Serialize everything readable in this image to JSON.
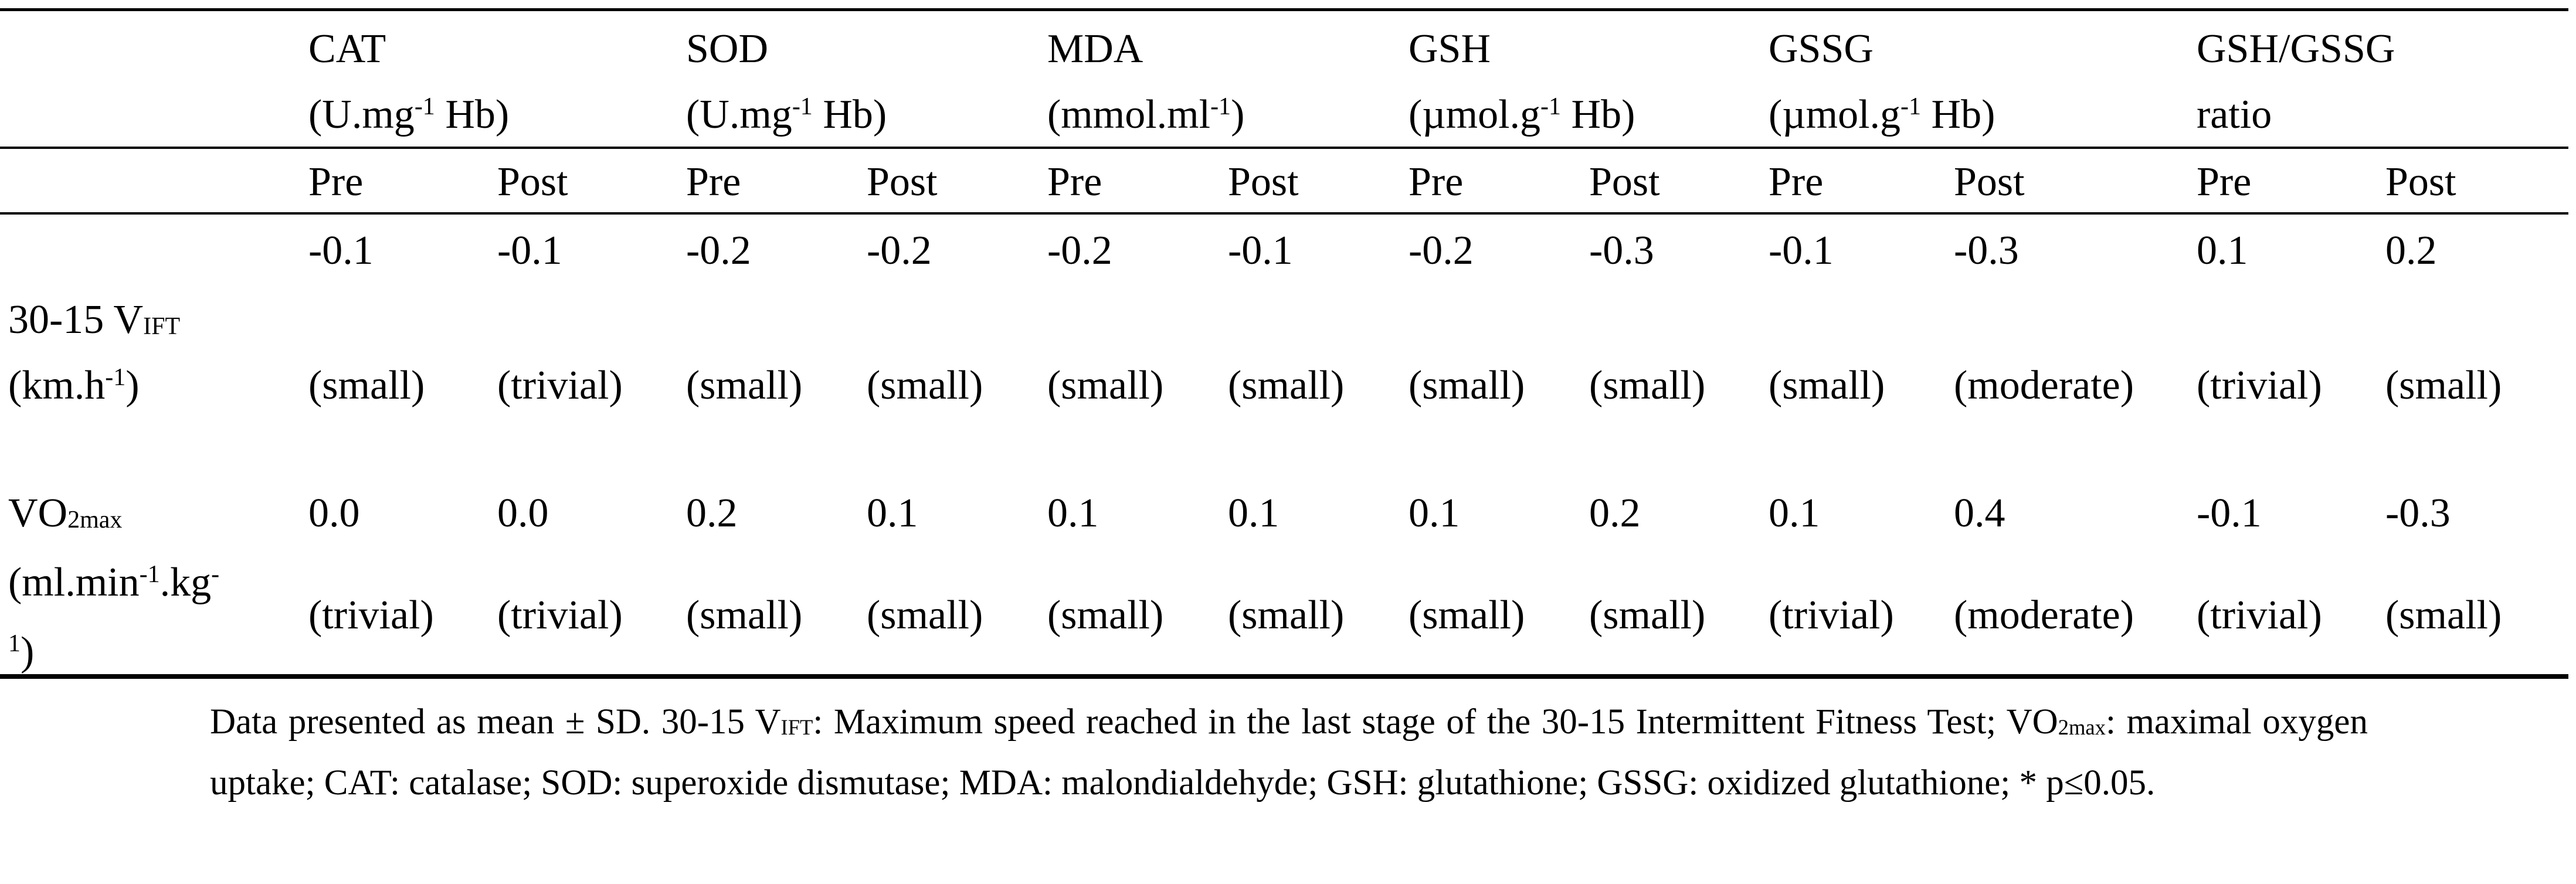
{
  "header": {
    "groups": [
      {
        "name": "CAT",
        "unit": [
          "(U.mg",
          {
            "sup": "-1"
          },
          " Hb)"
        ]
      },
      {
        "name": "SOD",
        "unit": [
          "(U.mg",
          {
            "sup": "-1"
          },
          " Hb)"
        ]
      },
      {
        "name": "MDA",
        "unit": [
          "(mmol.ml",
          {
            "sup": "-1"
          },
          ")"
        ]
      },
      {
        "name": "GSH",
        "unit": [
          "(µmol.g",
          {
            "sup": "-1"
          },
          " Hb)"
        ]
      },
      {
        "name": "GSSG",
        "unit": [
          "(µmol.g",
          {
            "sup": "-1"
          },
          " Hb)"
        ]
      },
      {
        "name": "GSH/GSSG",
        "unit": [
          "ratio"
        ]
      }
    ],
    "subheaders": [
      "Pre",
      "Post"
    ]
  },
  "rows": [
    {
      "label": [
        [
          "30-15 V",
          {
            "sub": "IFT"
          }
        ],
        [
          "(km.h",
          {
            "sup": "-1"
          },
          ")"
        ]
      ],
      "values": [
        "-0.1",
        "-0.1",
        "-0.2",
        "-0.2",
        "-0.2",
        "-0.1",
        "-0.2",
        "-0.3",
        "-0.1",
        "-0.3",
        "0.1",
        "0.2"
      ],
      "effects": [
        "(small)",
        "(trivial)",
        "(small)",
        "(small)",
        "(small)",
        "(small)",
        "(small)",
        "(small)",
        "(small)",
        "(moderate)",
        "(trivial)",
        "(small)"
      ]
    },
    {
      "label": [
        [
          "VO",
          {
            "sub": "2max"
          }
        ],
        [
          "(ml.min",
          {
            "sup": "-1"
          },
          ".kg",
          {
            "sup": "-"
          }
        ],
        [
          {
            "sup": "1"
          },
          ")"
        ]
      ],
      "values": [
        "0.0",
        "0.0",
        "0.2",
        "0.1",
        "0.1",
        "0.1",
        "0.1",
        "0.2",
        "0.1",
        "0.4",
        "-0.1",
        "-0.3"
      ],
      "effects": [
        "(trivial)",
        "(trivial)",
        "(small)",
        "(small)",
        "(small)",
        "(small)",
        "(small)",
        "(small)",
        "(trivial)",
        "(moderate)",
        "(trivial)",
        "(small)"
      ]
    }
  ],
  "footnote": [
    "Data presented as mean ± SD. 30-15 V",
    {
      "sub": "IFT"
    },
    ": Maximum speed reached in the last stage of the 30-15 Intermittent Fitness Test; VO",
    {
      "sub": "2max"
    },
    ": maximal oxygen uptake; CAT: catalase; SOD: superoxide dismutase; MDA: malondialdehyde; GSH: glutathione; GSSG: oxidized glutathione; * p≤0.05."
  ]
}
